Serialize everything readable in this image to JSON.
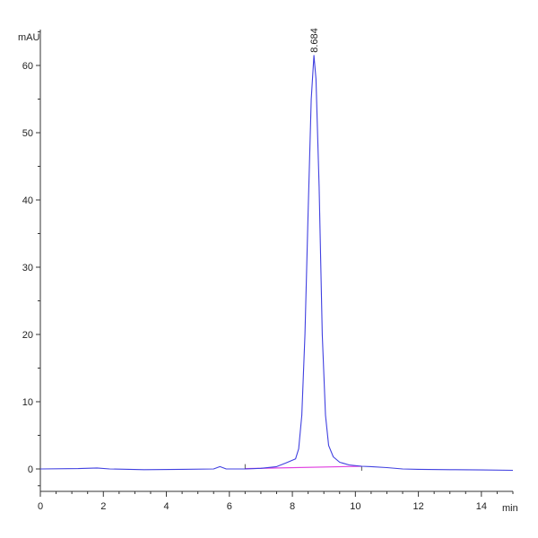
{
  "chart_data": {
    "type": "line",
    "ylabel": "mAU",
    "xlabel": "min",
    "xlim": [
      0,
      15
    ],
    "ylim": [
      -3.5,
      65
    ],
    "x_ticks": [
      0,
      2,
      4,
      6,
      8,
      10,
      12,
      14
    ],
    "y_ticks": [
      0,
      10,
      20,
      30,
      40,
      50,
      60
    ],
    "grid": false,
    "series": [
      {
        "color": "#4040e0",
        "points": [
          [
            0,
            0
          ],
          [
            1.2,
            0.05
          ],
          [
            1.8,
            0.15
          ],
          [
            2.2,
            0
          ],
          [
            3.3,
            -0.1
          ],
          [
            4.5,
            -0.05
          ],
          [
            5.5,
            0
          ],
          [
            5.7,
            0.35
          ],
          [
            5.9,
            0
          ],
          [
            6.5,
            0
          ],
          [
            7.0,
            0.1
          ],
          [
            7.5,
            0.35
          ],
          [
            7.8,
            0.9
          ],
          [
            8.0,
            1.3
          ],
          [
            8.1,
            1.5
          ],
          [
            8.2,
            3
          ],
          [
            8.3,
            8
          ],
          [
            8.4,
            20
          ],
          [
            8.5,
            38
          ],
          [
            8.6,
            55
          ],
          [
            8.684,
            61.5
          ],
          [
            8.75,
            58
          ],
          [
            8.85,
            42
          ],
          [
            8.95,
            20
          ],
          [
            9.05,
            8
          ],
          [
            9.15,
            3.5
          ],
          [
            9.3,
            1.8
          ],
          [
            9.5,
            1.0
          ],
          [
            9.8,
            0.6
          ],
          [
            10.2,
            0.4
          ],
          [
            10.5,
            0.35
          ],
          [
            11,
            0.2
          ],
          [
            11.5,
            0
          ],
          [
            12,
            -0.05
          ],
          [
            13,
            -0.1
          ],
          [
            14,
            -0.15
          ],
          [
            15,
            -0.2
          ]
        ]
      }
    ],
    "baseline": {
      "color": "#e040e0",
      "points": [
        [
          6.5,
          0.05
        ],
        [
          10.2,
          0.4
        ]
      ]
    },
    "annotations": [
      {
        "text": "8.684",
        "x": 8.684,
        "y": 61.5
      }
    ]
  }
}
